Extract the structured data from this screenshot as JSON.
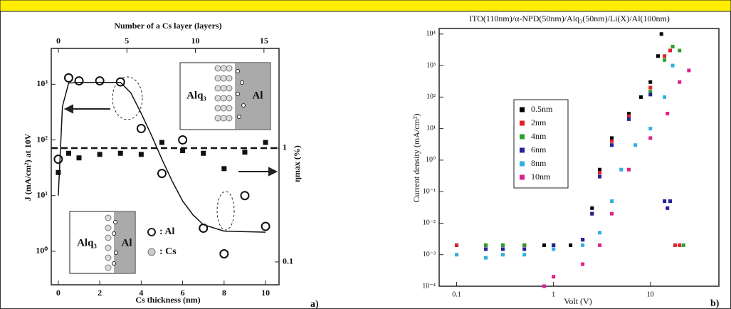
{
  "chart_data": [
    {
      "type": "scatter",
      "xlabel": "Cs thickness (nm)",
      "x2label": "Number of a Cs layer (layers)",
      "ylabel": "J (mA/cm²) at 10V",
      "y2label": "ηmax (%)",
      "xlim": [
        -0.34,
        10.65
      ],
      "xticks": [
        0,
        2,
        4,
        6,
        8,
        10
      ],
      "x2lim": [
        -0.52,
        16.1
      ],
      "x2ticks": [
        0,
        5,
        10,
        15
      ],
      "ylog": true,
      "ylim": [
        0.25,
        4400
      ],
      "yticks": [
        {
          "value": 1,
          "label": "10⁰"
        },
        {
          "value": 10,
          "label": "10¹"
        },
        {
          "value": 100,
          "label": "10²"
        },
        {
          "value": 1000,
          "label": "10³"
        }
      ],
      "y2log": true,
      "y2lim": [
        0.063,
        7.5
      ],
      "y2ticks": [
        0.1,
        1
      ],
      "reference_y2": 1,
      "series": [
        {
          "marker": "open-circle",
          "color": "#111111",
          "x": [
            0,
            0.5,
            1,
            2,
            3,
            4,
            5,
            6,
            7,
            8,
            9,
            10
          ],
          "values": [
            45,
            1300,
            1150,
            1150,
            1100,
            160,
            25,
            100,
            2.6,
            0.9,
            10,
            2.8
          ]
        },
        {
          "marker": "square",
          "axis": "y2",
          "color": "#111111",
          "x": [
            0,
            0.5,
            1,
            2,
            3,
            4,
            5,
            6,
            7,
            8,
            9,
            10
          ],
          "values": [
            0.61,
            0.9,
            0.82,
            0.88,
            0.9,
            0.88,
            1.12,
            0.95,
            0.9,
            0.66,
            0.92,
            1.12
          ]
        },
        {
          "marker": "line",
          "color": "#111111",
          "x": [
            0,
            0.2,
            0.5,
            1,
            2,
            3,
            3.5,
            4,
            4.5,
            5,
            5.5,
            6,
            6.5,
            7,
            8,
            10
          ],
          "values": [
            10,
            400,
            1050,
            1080,
            1080,
            1080,
            700,
            300,
            120,
            45,
            18,
            8,
            4.5,
            3,
            2.3,
            2.2
          ]
        }
      ],
      "annotations": [
        "Alq₃",
        "Al",
        "Alq₃",
        "Al",
        ": Al",
        ": Cs",
        "a)"
      ]
    },
    {
      "type": "scatter",
      "title": "ITO(110nm)/α-NPD(50nm)/Alq₃(50nm)/Li(X)/Al(100nm)",
      "xlabel": "Volt (V)",
      "ylabel": "Current density (mA/cm²)",
      "xlog": true,
      "xlim": [
        0.066,
        51
      ],
      "xticks": [
        0.1,
        1,
        10
      ],
      "ylog": true,
      "ylim": [
        0.0001,
        15000
      ],
      "yticks": [
        {
          "value": 0.0001,
          "label": "10⁻⁴"
        },
        {
          "value": 0.001,
          "label": "10⁻³"
        },
        {
          "value": 0.01,
          "label": "10⁻²"
        },
        {
          "value": 0.1,
          "label": "10⁻¹"
        },
        {
          "value": 1,
          "label": "10⁰"
        },
        {
          "value": 10,
          "label": "10¹"
        },
        {
          "value": 100,
          "label": "10²"
        },
        {
          "value": 1000,
          "label": "10³"
        },
        {
          "value": 10000,
          "label": "10⁴"
        }
      ],
      "legend": "upper left",
      "series": [
        {
          "name": "0.5nm",
          "color": "#000000",
          "x": [
            0.1,
            0.2,
            0.3,
            0.5,
            0.8,
            1,
            1.5,
            2,
            2.5,
            3,
            4,
            6,
            8,
            10,
            12,
            13
          ],
          "values": [
            0.002,
            0.002,
            0.002,
            0.002,
            0.002,
            0.002,
            0.002,
            0.003,
            0.03,
            0.5,
            5,
            30,
            100,
            300,
            2000,
            10000
          ]
        },
        {
          "name": "2nm",
          "color": "#e0202a",
          "x": [
            0.1,
            0.2,
            0.3,
            0.5,
            1,
            2,
            2.5,
            3,
            4,
            6,
            10,
            14,
            16,
            18,
            20
          ],
          "values": [
            0.002,
            0.002,
            0.002,
            0.002,
            0.002,
            0.003,
            0.02,
            0.4,
            4,
            25,
            200,
            2000,
            3000,
            0.002,
            0.002
          ]
        },
        {
          "name": "4nm",
          "color": "#2ca02c",
          "x": [
            0.2,
            0.3,
            0.5,
            1,
            2,
            2.5,
            3,
            4,
            6,
            10,
            14,
            17,
            20,
            22
          ],
          "values": [
            0.002,
            0.002,
            0.002,
            0.002,
            0.003,
            0.02,
            0.3,
            3,
            20,
            150,
            1500,
            4000,
            3000,
            0.002
          ]
        },
        {
          "name": "6nm",
          "color": "#22229a",
          "x": [
            0.2,
            0.3,
            0.5,
            1,
            2,
            2.5,
            3,
            4,
            6,
            10,
            14,
            15,
            16
          ],
          "values": [
            0.0015,
            0.0015,
            0.0015,
            0.002,
            0.003,
            0.02,
            0.3,
            3,
            20,
            120,
            0.05,
            0.03,
            0.05
          ]
        },
        {
          "name": "8nm",
          "color": "#30b0e0",
          "x": [
            0.1,
            0.2,
            0.3,
            0.5,
            1,
            2,
            3,
            4,
            5,
            7,
            10,
            14,
            17
          ],
          "values": [
            0.001,
            0.0008,
            0.001,
            0.001,
            0.0015,
            0.002,
            0.005,
            0.05,
            0.5,
            3,
            10,
            100,
            1000
          ]
        },
        {
          "name": "10nm",
          "color": "#e0208a",
          "x": [
            0.8,
            1,
            2,
            3,
            4,
            6,
            10,
            15,
            20,
            25
          ],
          "values": [
            0.0001,
            0.0002,
            0.0005,
            0.002,
            0.02,
            0.5,
            5,
            30,
            300,
            700
          ]
        }
      ],
      "annotations": [
        "b)"
      ]
    }
  ]
}
